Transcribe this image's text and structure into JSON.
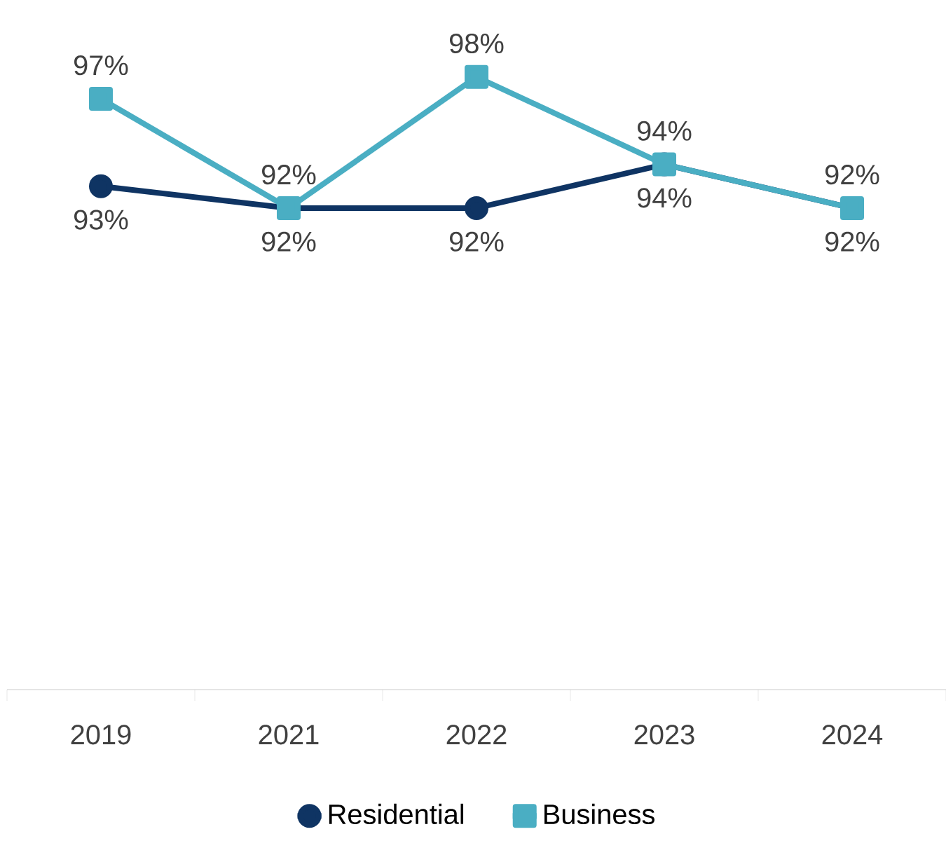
{
  "chart_data": {
    "type": "line",
    "categories": [
      "2019",
      "2021",
      "2022",
      "2023",
      "2024"
    ],
    "series": [
      {
        "name": "Residential",
        "color": "#0f3463",
        "marker": "circle",
        "values": [
          93,
          92,
          92,
          94,
          92
        ],
        "value_labels": [
          "93%",
          "92%",
          "92%",
          "94%",
          "92%"
        ]
      },
      {
        "name": "Business",
        "color": "#4aaec3",
        "marker": "square",
        "values": [
          97,
          92,
          98,
          94,
          92
        ],
        "value_labels": [
          "97%",
          "92%",
          "98%",
          "94%",
          "92%"
        ]
      }
    ],
    "legend": "bottom",
    "grid": false,
    "tick_labels": "x"
  }
}
